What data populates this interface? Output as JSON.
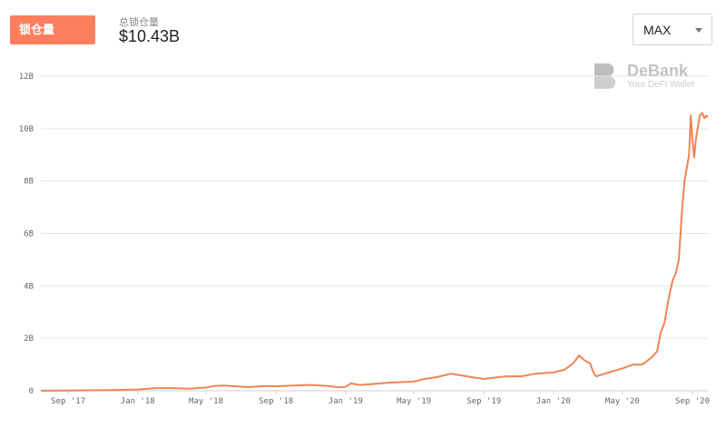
{
  "header": {
    "tab_label": "锁仓量",
    "stat_label": "总锁仓量",
    "stat_value": "$10.43B",
    "range_value": "MAX"
  },
  "watermark": {
    "name": "DeBank",
    "tagline": "Your DeFi Wallet"
  },
  "colors": {
    "accent": "#fc7f5d",
    "line": "#f08455",
    "grid": "#e6e6e6"
  },
  "chart_data": {
    "type": "line",
    "title": "",
    "xlabel": "",
    "ylabel": "",
    "ylim": [
      0,
      12
    ],
    "y_unit": "B",
    "y_ticks": [
      0,
      2,
      4,
      6,
      8,
      10,
      12
    ],
    "y_tick_labels": [
      "0",
      "2B",
      "4B",
      "6B",
      "8B",
      "10B",
      "12B"
    ],
    "x_tick_labels": [
      "Sep '17",
      "Jan '18",
      "May '18",
      "Sep '18",
      "Jan '19",
      "May '19",
      "Sep '19",
      "Jan '20",
      "May '20",
      "Sep '20"
    ],
    "x_tick_dates": [
      "2017-09-01",
      "2018-01-01",
      "2018-05-01",
      "2018-09-01",
      "2019-01-01",
      "2019-05-01",
      "2019-09-01",
      "2020-01-01",
      "2020-05-01",
      "2020-09-01"
    ],
    "x_range": [
      "2017-07-15",
      "2020-09-28"
    ],
    "grid": "horizontal",
    "series": [
      {
        "values": [
          [
            "2017-07-15",
            0.0
          ],
          [
            "2017-09-01",
            0.01
          ],
          [
            "2017-11-01",
            0.02
          ],
          [
            "2017-12-01",
            0.03
          ],
          [
            "2018-01-01",
            0.05
          ],
          [
            "2018-02-01",
            0.1
          ],
          [
            "2018-03-01",
            0.1
          ],
          [
            "2018-04-01",
            0.08
          ],
          [
            "2018-05-01",
            0.12
          ],
          [
            "2018-05-15",
            0.18
          ],
          [
            "2018-06-01",
            0.2
          ],
          [
            "2018-06-20",
            0.17
          ],
          [
            "2018-07-15",
            0.14
          ],
          [
            "2018-08-15",
            0.18
          ],
          [
            "2018-09-01",
            0.17
          ],
          [
            "2018-10-01",
            0.2
          ],
          [
            "2018-11-01",
            0.22
          ],
          [
            "2018-12-01",
            0.18
          ],
          [
            "2018-12-20",
            0.13
          ],
          [
            "2019-01-01",
            0.15
          ],
          [
            "2019-01-10",
            0.28
          ],
          [
            "2019-01-25",
            0.22
          ],
          [
            "2019-02-15",
            0.25
          ],
          [
            "2019-03-15",
            0.3
          ],
          [
            "2019-04-15",
            0.34
          ],
          [
            "2019-05-01",
            0.35
          ],
          [
            "2019-05-20",
            0.45
          ],
          [
            "2019-06-10",
            0.52
          ],
          [
            "2019-07-05",
            0.65
          ],
          [
            "2019-07-25",
            0.58
          ],
          [
            "2019-08-15",
            0.5
          ],
          [
            "2019-09-01",
            0.45
          ],
          [
            "2019-09-20",
            0.5
          ],
          [
            "2019-10-10",
            0.55
          ],
          [
            "2019-11-05",
            0.55
          ],
          [
            "2019-12-01",
            0.65
          ],
          [
            "2020-01-01",
            0.7
          ],
          [
            "2020-01-20",
            0.8
          ],
          [
            "2020-02-05",
            1.05
          ],
          [
            "2020-02-15",
            1.35
          ],
          [
            "2020-02-25",
            1.15
          ],
          [
            "2020-03-05",
            1.05
          ],
          [
            "2020-03-12",
            0.65
          ],
          [
            "2020-03-16",
            0.55
          ],
          [
            "2020-03-31",
            0.65
          ],
          [
            "2020-04-15",
            0.75
          ],
          [
            "2020-05-01",
            0.85
          ],
          [
            "2020-05-20",
            1.0
          ],
          [
            "2020-06-05",
            1.0
          ],
          [
            "2020-06-20",
            1.25
          ],
          [
            "2020-07-01",
            1.5
          ],
          [
            "2020-07-07",
            2.2
          ],
          [
            "2020-07-14",
            2.6
          ],
          [
            "2020-07-21",
            3.5
          ],
          [
            "2020-07-28",
            4.2
          ],
          [
            "2020-08-03",
            4.5
          ],
          [
            "2020-08-08",
            5.0
          ],
          [
            "2020-08-14",
            7.0
          ],
          [
            "2020-08-18",
            8.0
          ],
          [
            "2020-08-22",
            8.5
          ],
          [
            "2020-08-26",
            9.0
          ],
          [
            "2020-08-29",
            10.5
          ],
          [
            "2020-09-01",
            9.5
          ],
          [
            "2020-09-04",
            8.9
          ],
          [
            "2020-09-07",
            9.6
          ],
          [
            "2020-09-10",
            10.0
          ],
          [
            "2020-09-14",
            10.5
          ],
          [
            "2020-09-18",
            10.6
          ],
          [
            "2020-09-22",
            10.4
          ],
          [
            "2020-09-25",
            10.5
          ],
          [
            "2020-09-28",
            10.43
          ]
        ]
      }
    ]
  }
}
